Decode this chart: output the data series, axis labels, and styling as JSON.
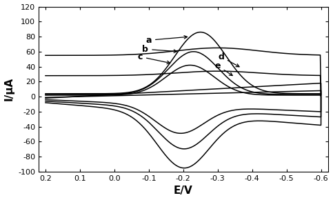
{
  "xlim": [
    0.22,
    -0.62
  ],
  "ylim": [
    -100,
    120
  ],
  "xlabel": "E/V",
  "ylabel": "I/μA",
  "yticks": [
    -100,
    -80,
    -60,
    -40,
    -20,
    0,
    20,
    40,
    60,
    80,
    100,
    120
  ],
  "xticks": [
    0.2,
    0.1,
    0.0,
    -0.1,
    -0.2,
    -0.3,
    -0.4,
    -0.5,
    -0.6
  ],
  "color": "#000000",
  "bg_color": "#ffffff",
  "label_a": "a",
  "label_b": "b",
  "label_c": "c",
  "label_d": "d",
  "label_e": "e"
}
